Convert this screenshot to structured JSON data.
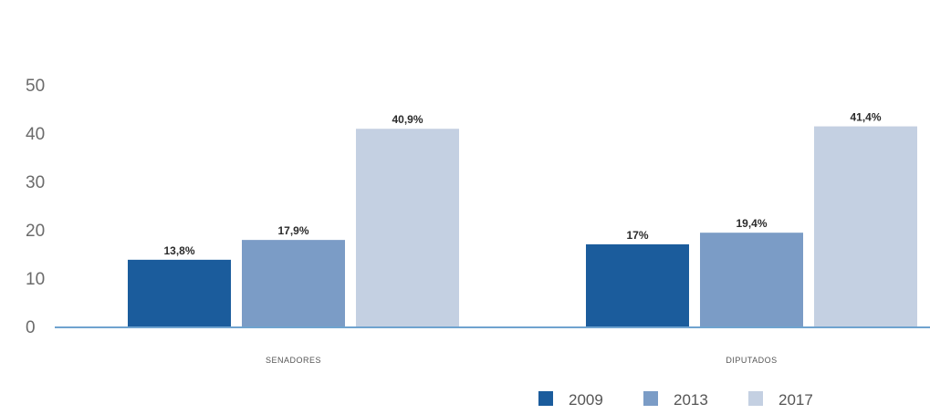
{
  "chart_data": {
    "type": "bar",
    "title": "",
    "xlabel": "",
    "ylabel": "",
    "ylim": [
      0,
      50
    ],
    "yticks": [
      "0",
      "10",
      "20",
      "30",
      "40",
      "50"
    ],
    "categories": [
      "SENADORES",
      "DIPUTADOS"
    ],
    "series": [
      {
        "name": "2009",
        "color": "#1b5c9c",
        "values": [
          13.8,
          17.0
        ],
        "labels": [
          "13,8%",
          "17%"
        ]
      },
      {
        "name": "2013",
        "color": "#7b9cc6",
        "values": [
          17.9,
          19.4
        ],
        "labels": [
          "17,9%",
          "19,4%"
        ]
      },
      {
        "name": "2017",
        "color": "#c4d0e2",
        "values": [
          40.9,
          41.4
        ],
        "labels": [
          "40,9%",
          "41,4%"
        ]
      }
    ],
    "grid": false,
    "legend_position": "bottom-right",
    "axis_color": "#6fa3cf"
  }
}
